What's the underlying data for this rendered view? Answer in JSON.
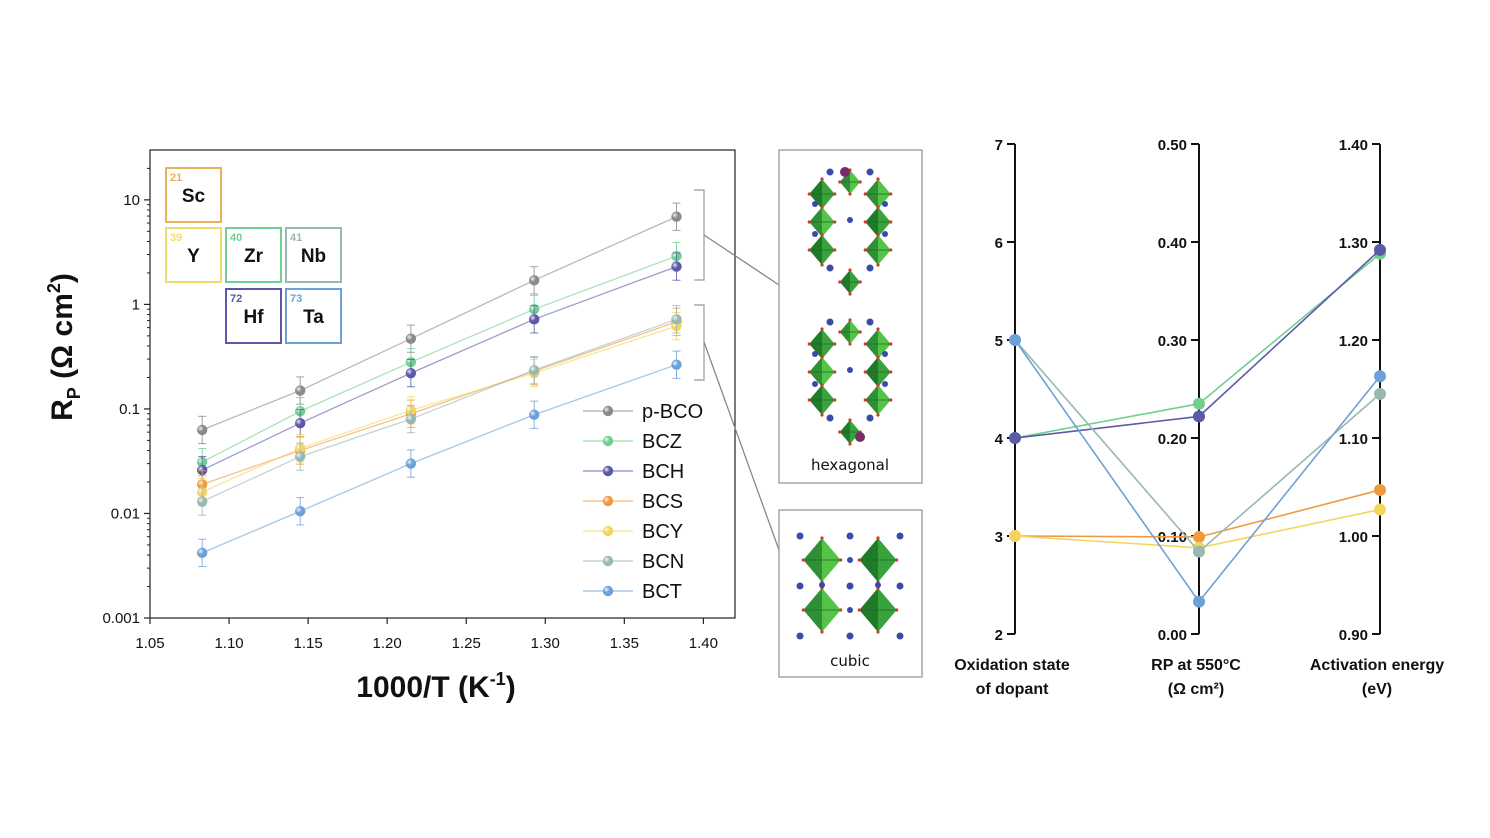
{
  "elements": [
    {
      "z": "21",
      "symbol": "Sc",
      "color": "#e8b25a"
    },
    {
      "z": "39",
      "symbol": "Y",
      "color": "#f0dc6a"
    },
    {
      "z": "40",
      "symbol": "Zr",
      "color": "#6fd08f"
    },
    {
      "z": "41",
      "symbol": "Nb",
      "color": "#98b8b0"
    },
    {
      "z": "72",
      "symbol": "Hf",
      "color": "#5a5aa8"
    },
    {
      "z": "73",
      "symbol": "Ta",
      "color": "#6ea0d8"
    }
  ],
  "structures": {
    "hexagonal": "hexagonal",
    "cubic": "cubic"
  },
  "chart_data": [
    {
      "type": "line",
      "title": "",
      "xlabel": "1000/T (K-1)",
      "ylabel": "RP (Ω cm2)",
      "xlim": [
        1.05,
        1.42
      ],
      "ylim": [
        0.001,
        30
      ],
      "yscale": "log",
      "x_ticks": [
        "1.05",
        "1.10",
        "1.15",
        "1.20",
        "1.25",
        "1.30",
        "1.35",
        "1.40"
      ],
      "y_ticks": [
        "0.001",
        "0.01",
        "0.1",
        "1",
        "10"
      ],
      "legend_position": "bottom-right",
      "x": [
        1.083,
        1.145,
        1.215,
        1.293,
        1.383
      ],
      "series": [
        {
          "name": "p-BCO",
          "color": "#8a8a8a",
          "values": [
            0.063,
            0.15,
            0.47,
            1.7,
            6.9
          ]
        },
        {
          "name": "BCZ",
          "color": "#6fd08f",
          "values": [
            0.031,
            0.095,
            0.28,
            0.9,
            2.9
          ]
        },
        {
          "name": "BCH",
          "color": "#5a5aa8",
          "values": [
            0.026,
            0.073,
            0.22,
            0.72,
            2.3
          ]
        },
        {
          "name": "BCS",
          "color": "#f09a40",
          "values": [
            0.019,
            0.04,
            0.09,
            0.23,
            0.68
          ]
        },
        {
          "name": "BCY",
          "color": "#f5d45e",
          "values": [
            0.016,
            0.042,
            0.097,
            0.22,
            0.62
          ]
        },
        {
          "name": "BCN",
          "color": "#98b8b0",
          "values": [
            0.013,
            0.035,
            0.08,
            0.235,
            0.72
          ]
        },
        {
          "name": "BCT",
          "color": "#6ea0d8",
          "values": [
            0.0042,
            0.0105,
            0.03,
            0.088,
            0.265
          ]
        }
      ]
    },
    {
      "type": "line",
      "title": "",
      "categories": [
        "Oxidation state of dopant",
        "RP at 550°C (Ω cm²)",
        "Activation energy (eV)"
      ],
      "axes": [
        {
          "label_lines": [
            "Oxidation state",
            "of dopant"
          ],
          "min": 2,
          "max": 7,
          "ticks": [
            "2",
            "3",
            "4",
            "5",
            "6",
            "7"
          ]
        },
        {
          "label_lines": [
            "RP at 550°C",
            "(Ω cm²)"
          ],
          "min": 0.0,
          "max": 0.5,
          "ticks": [
            "0.00",
            "0.10",
            "0.20",
            "0.30",
            "0.40",
            "0.50"
          ]
        },
        {
          "label_lines": [
            "Activation energy",
            "(eV)"
          ],
          "min": 0.9,
          "max": 1.4,
          "ticks": [
            "0.90",
            "1.00",
            "1.10",
            "1.20",
            "1.30",
            "1.40"
          ]
        }
      ],
      "series": [
        {
          "name": "BCZ",
          "color": "#6fd08f",
          "values": [
            4,
            0.235,
            1.288
          ]
        },
        {
          "name": "BCH",
          "color": "#5a5aa8",
          "values": [
            4,
            0.222,
            1.292
          ]
        },
        {
          "name": "BCS",
          "color": "#f09a40",
          "values": [
            3,
            0.099,
            1.047
          ]
        },
        {
          "name": "BCY",
          "color": "#f5d45e",
          "values": [
            3,
            0.088,
            1.027
          ]
        },
        {
          "name": "BCN",
          "color": "#98b8b0",
          "values": [
            5,
            0.084,
            1.145
          ]
        },
        {
          "name": "BCT",
          "color": "#6ea0d8",
          "values": [
            5,
            0.033,
            1.163
          ]
        }
      ]
    }
  ]
}
